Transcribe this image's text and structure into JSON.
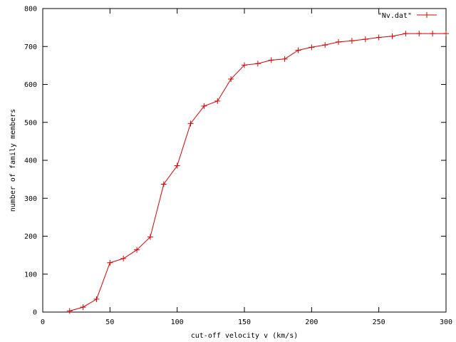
{
  "chart_data": {
    "type": "line",
    "xlabel": "cut-off velocity v (km/s)",
    "ylabel": "number of family members",
    "xlim": [
      0,
      300
    ],
    "ylim": [
      0,
      800
    ],
    "x_ticks": [
      0,
      50,
      100,
      150,
      200,
      250,
      300
    ],
    "y_ticks": [
      0,
      100,
      200,
      300,
      400,
      500,
      600,
      700,
      800
    ],
    "grid": false,
    "legend_position": "top-right",
    "series": [
      {
        "name": "\"Nv.dat\"",
        "color": "#dd0000",
        "marker": "plus",
        "x": [
          20,
          30,
          40,
          50,
          60,
          70,
          80,
          90,
          100,
          110,
          120,
          130,
          140,
          150,
          160,
          170,
          180,
          190,
          200,
          210,
          220,
          230,
          240,
          250,
          260,
          270,
          280,
          290,
          300
        ],
        "y": [
          3,
          13,
          34,
          130,
          141,
          164,
          198,
          337,
          386,
          497,
          543,
          556,
          614,
          651,
          655,
          664,
          667,
          690,
          698,
          704,
          712,
          715,
          719,
          724,
          727,
          734,
          734,
          734,
          734
        ]
      }
    ]
  }
}
